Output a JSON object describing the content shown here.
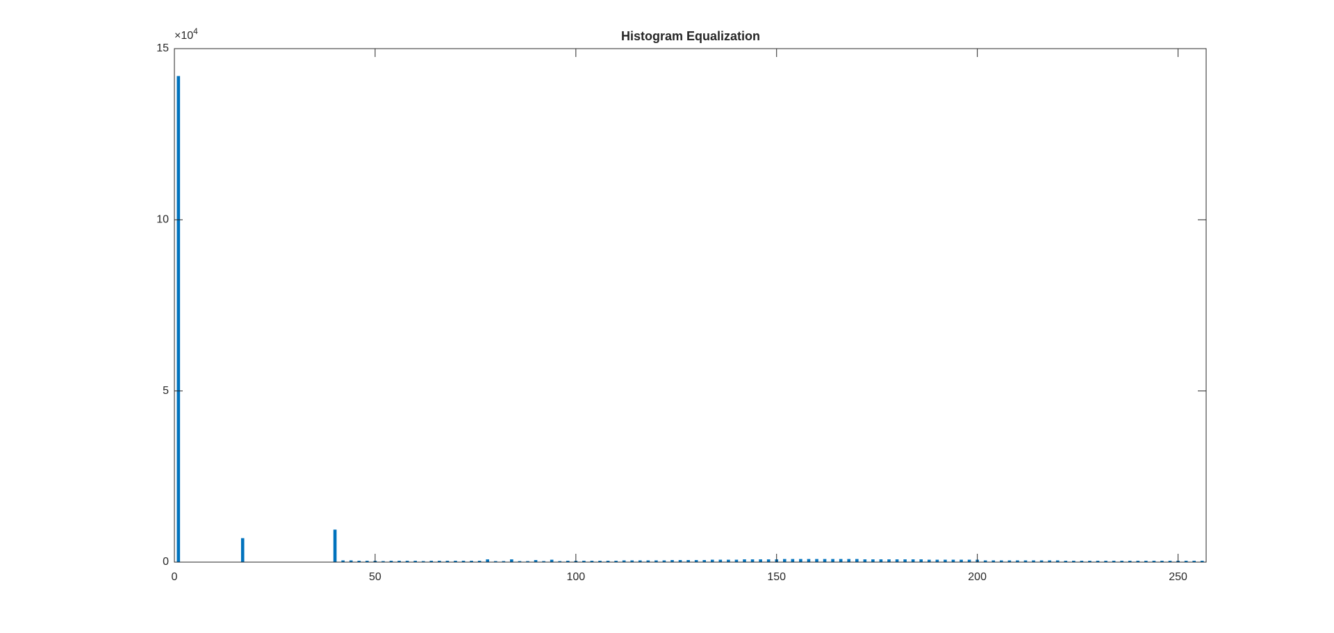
{
  "chart_data": {
    "type": "bar",
    "title": "Histogram Equalization",
    "y_multiplier": {
      "base": "×10",
      "exponent": "4"
    },
    "x": [
      1,
      17,
      40,
      42,
      44,
      46,
      48,
      50,
      52,
      54,
      56,
      58,
      60,
      62,
      64,
      66,
      68,
      70,
      72,
      74,
      76,
      78,
      80,
      82,
      84,
      86,
      88,
      90,
      92,
      94,
      96,
      98,
      100,
      102,
      104,
      106,
      108,
      110,
      112,
      114,
      116,
      118,
      120,
      122,
      124,
      126,
      128,
      130,
      132,
      134,
      136,
      138,
      140,
      142,
      144,
      146,
      148,
      150,
      152,
      154,
      156,
      158,
      160,
      162,
      164,
      166,
      168,
      170,
      172,
      174,
      176,
      178,
      180,
      182,
      184,
      186,
      188,
      190,
      192,
      194,
      196,
      198,
      200,
      202,
      204,
      206,
      208,
      210,
      212,
      214,
      216,
      218,
      220,
      222,
      224,
      226,
      228,
      230,
      232,
      234,
      236,
      238,
      240,
      242,
      244,
      246,
      248,
      250,
      252,
      254,
      256
    ],
    "values": [
      14.2,
      0.7,
      0.95,
      0.05,
      0.05,
      0.04,
      0.04,
      0.04,
      0.03,
      0.04,
      0.04,
      0.04,
      0.04,
      0.03,
      0.04,
      0.04,
      0.04,
      0.04,
      0.04,
      0.04,
      0.04,
      0.08,
      0.03,
      0.03,
      0.08,
      0.03,
      0.03,
      0.06,
      0.03,
      0.07,
      0.03,
      0.04,
      0.04,
      0.04,
      0.04,
      0.04,
      0.04,
      0.04,
      0.05,
      0.05,
      0.05,
      0.05,
      0.05,
      0.05,
      0.06,
      0.06,
      0.06,
      0.06,
      0.06,
      0.07,
      0.07,
      0.07,
      0.07,
      0.08,
      0.08,
      0.08,
      0.08,
      0.08,
      0.09,
      0.09,
      0.09,
      0.09,
      0.09,
      0.09,
      0.09,
      0.09,
      0.09,
      0.09,
      0.08,
      0.08,
      0.08,
      0.08,
      0.08,
      0.08,
      0.08,
      0.08,
      0.07,
      0.07,
      0.07,
      0.07,
      0.07,
      0.07,
      0.07,
      0.05,
      0.05,
      0.05,
      0.05,
      0.05,
      0.05,
      0.05,
      0.05,
      0.05,
      0.05,
      0.04,
      0.04,
      0.04,
      0.04,
      0.04,
      0.04,
      0.04,
      0.04,
      0.04,
      0.04,
      0.04,
      0.04,
      0.04,
      0.04,
      0.04,
      0.04,
      0.04,
      0.04
    ],
    "color": "#0072bd",
    "xlim": [
      0,
      257
    ],
    "xticks": [
      0,
      50,
      100,
      150,
      200,
      250
    ],
    "ylim": [
      0,
      15
    ],
    "yticks": [
      0,
      5,
      10,
      15
    ],
    "grid": false
  }
}
